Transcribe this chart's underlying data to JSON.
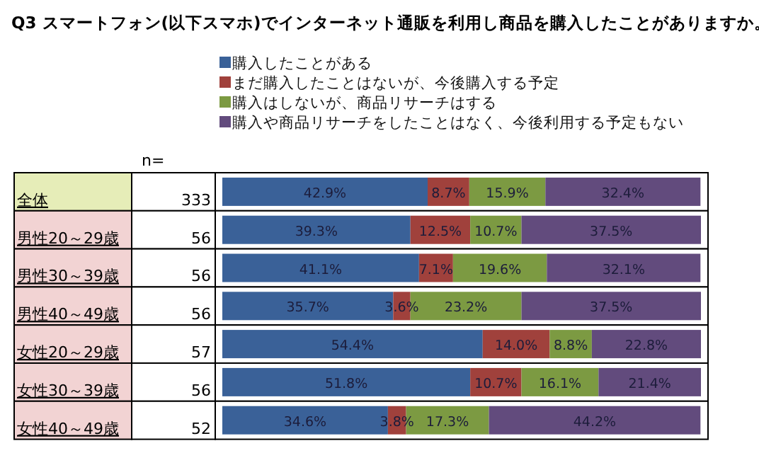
{
  "chart_data": {
    "type": "bar",
    "orientation": "horizontal",
    "stacked": true,
    "title": "Q3 スマートフォン(以下スマホ)でインターネット通販を利用し商品を購入したことがありますか。",
    "categories": [
      "全体",
      "男性20～29歳",
      "男性30～39歳",
      "男性40～49歳",
      "女性20～29歳",
      "女性30～39歳",
      "女性40～49歳"
    ],
    "series": [
      {
        "name": "購入したことがある",
        "color": "#3a6198",
        "values": [
          42.9,
          39.3,
          41.1,
          35.7,
          54.4,
          51.8,
          34.6
        ],
        "value_labels": [
          "42.9%",
          "39.3%",
          "41.1%",
          "35.7%",
          "54.4%",
          "51.8%",
          "34.6%"
        ]
      },
      {
        "name": "まだ購入したことはないが、今後購入する予定",
        "color": "#a0413c",
        "values": [
          8.7,
          12.5,
          7.1,
          3.6,
          14.0,
          10.7,
          3.8
        ],
        "value_labels": [
          "8.7%",
          "12.5%",
          "7.1%",
          "3.6%",
          "14.0%",
          "10.7%",
          "3.8%"
        ]
      },
      {
        "name": "購入はしないが、商品リサーチはする",
        "color": "#7c9a42",
        "values": [
          15.9,
          10.7,
          19.6,
          23.2,
          8.8,
          16.1,
          17.3
        ],
        "value_labels": [
          "15.9%",
          "10.7%",
          "19.6%",
          "23.2%",
          "8.8%",
          "16.1%",
          "17.3%"
        ]
      },
      {
        "name": "購入や商品リサーチをしたことはなく、今後利用する予定もない",
        "color": "#624b7d",
        "values": [
          32.4,
          37.5,
          32.1,
          37.5,
          22.8,
          21.4,
          44.2
        ],
        "value_labels": [
          "32.4%",
          "37.5%",
          "32.1%",
          "37.5%",
          "22.8%",
          "21.4%",
          "44.2%"
        ]
      }
    ],
    "legend": "top",
    "annotations": [
      "n=",
      "333",
      "56",
      "56",
      "56",
      "57",
      "56",
      "52"
    ]
  }
}
